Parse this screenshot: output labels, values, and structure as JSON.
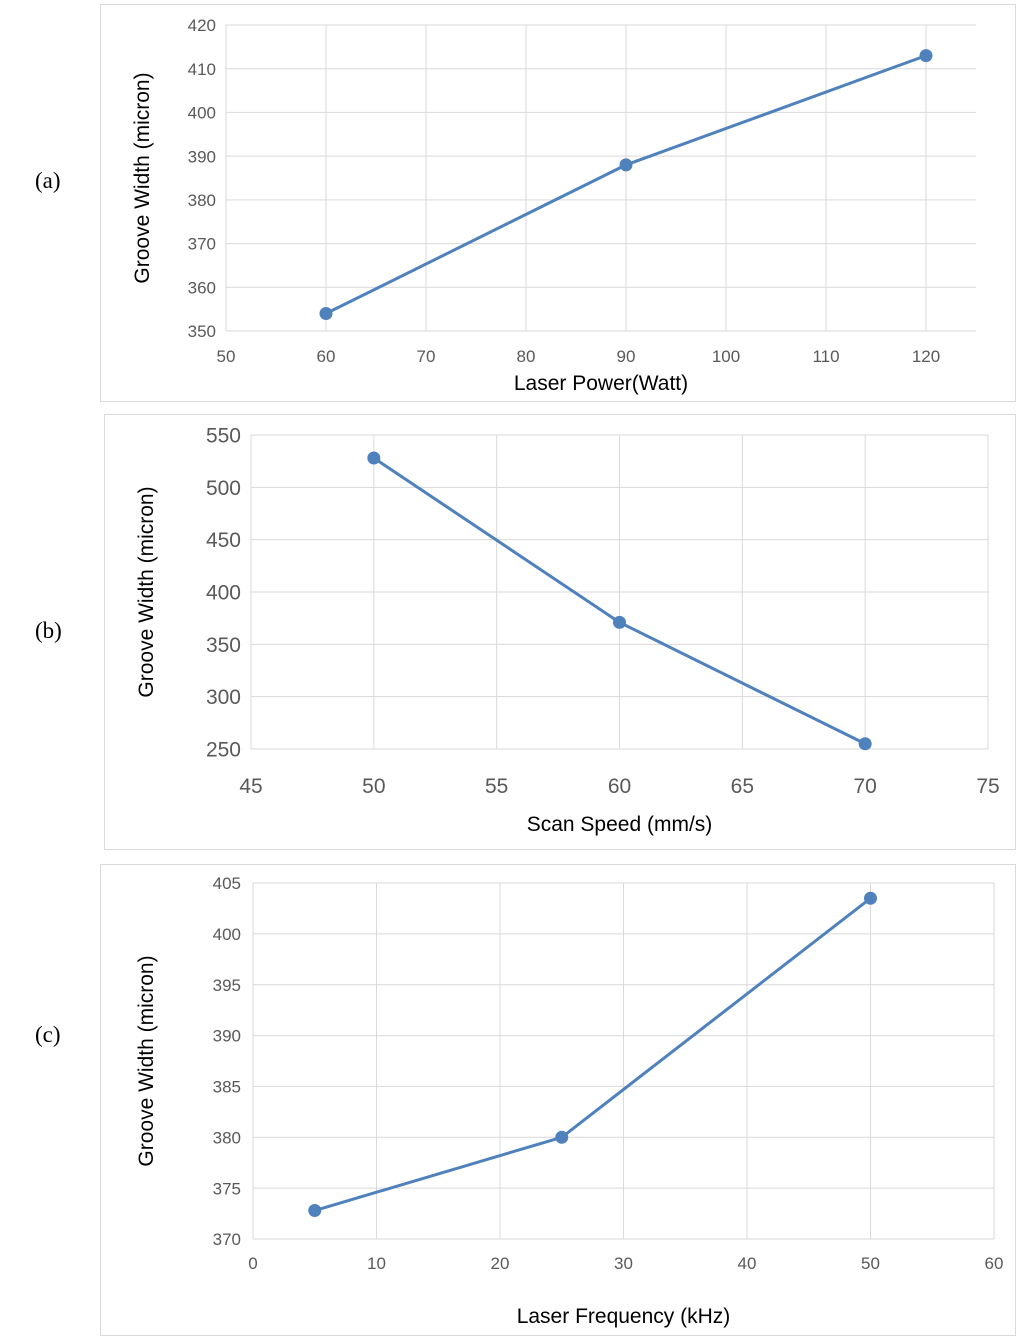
{
  "panel_labels": [
    "(a)",
    "(b)",
    "(c)"
  ],
  "colors": {
    "series": "#4f81bd",
    "grid": "#d9d9d9",
    "tick_text": "#595959",
    "axis_title": "#000000"
  },
  "chart_data": [
    {
      "type": "line",
      "title": "",
      "xlabel": "Laser Power(Watt)",
      "ylabel": "Groove Width (micron)",
      "xlim": [
        50,
        125
      ],
      "ylim": [
        350,
        420
      ],
      "x_ticks": [
        "50",
        "60",
        "70",
        "80",
        "90",
        "100",
        "110",
        "120"
      ],
      "y_ticks": [
        "420",
        "410",
        "400",
        "390",
        "380",
        "370",
        "360",
        "350"
      ],
      "x": [
        60,
        90,
        120
      ],
      "y": [
        354,
        388,
        413
      ],
      "grid": true,
      "legend": "none"
    },
    {
      "type": "line",
      "title": "",
      "xlabel": "Scan Speed (mm/s)",
      "ylabel": "Groove Width (micron)",
      "xlim": [
        45,
        75
      ],
      "ylim": [
        250,
        550
      ],
      "x_ticks": [
        "45",
        "50",
        "55",
        "60",
        "65",
        "70",
        "75"
      ],
      "y_ticks": [
        "550",
        "500",
        "450",
        "400",
        "350",
        "300",
        "250"
      ],
      "x": [
        50,
        60,
        70
      ],
      "y": [
        528,
        371,
        255
      ],
      "grid": true,
      "legend": "none"
    },
    {
      "type": "line",
      "title": "",
      "xlabel": "Laser Frequency (kHz)",
      "ylabel": "Groove Width (micron)",
      "xlim": [
        0,
        60
      ],
      "ylim": [
        370,
        405
      ],
      "x_ticks": [
        "0",
        "10",
        "20",
        "30",
        "40",
        "50",
        "60"
      ],
      "y_ticks": [
        "405",
        "400",
        "395",
        "390",
        "385",
        "380",
        "375",
        "370"
      ],
      "x": [
        5,
        25,
        50
      ],
      "y": [
        372.8,
        380.0,
        403.5
      ],
      "grid": true,
      "legend": "none"
    }
  ]
}
